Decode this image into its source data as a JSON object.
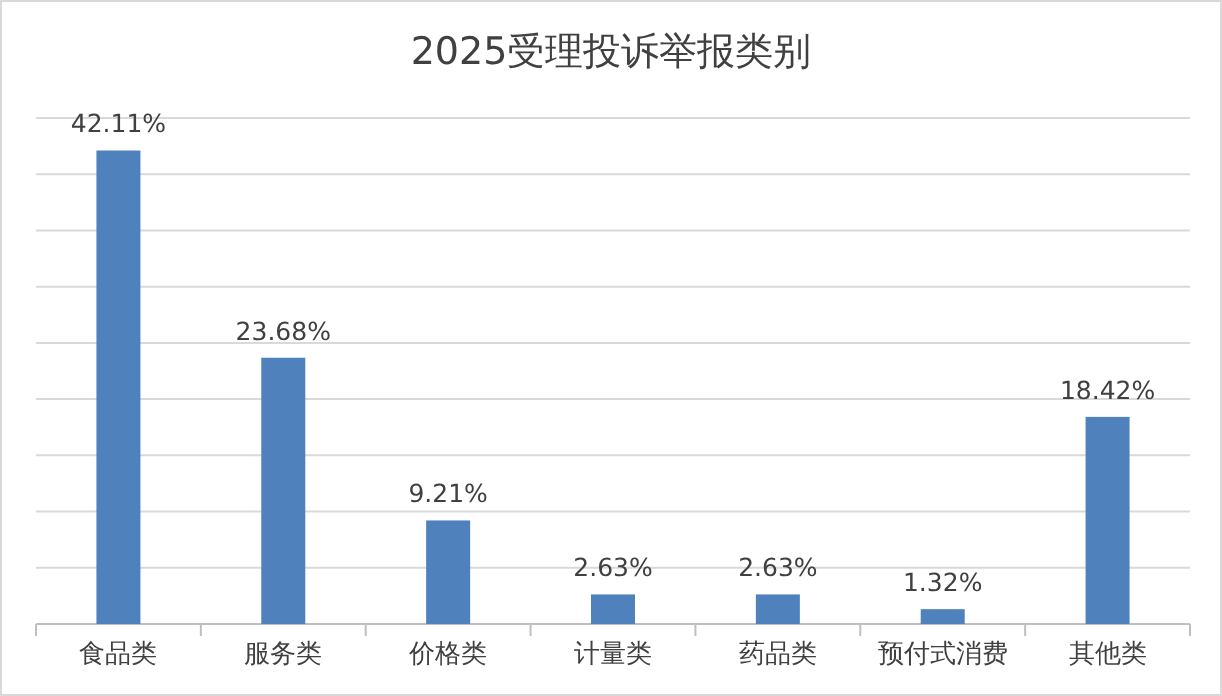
{
  "chart_data": {
    "type": "bar",
    "title": "2025受理投诉举报类别",
    "categories": [
      "食品类",
      "服务类",
      "价格类",
      "计量类",
      "药品类",
      "预付式消费",
      "其他类"
    ],
    "values": [
      42.11,
      23.68,
      9.21,
      2.63,
      2.63,
      1.32,
      18.42
    ],
    "value_labels": [
      "42.11%",
      "23.68%",
      "9.21%",
      "2.63%",
      "2.63%",
      "1.32%",
      "18.42%"
    ],
    "color": "#4f81bd",
    "ylim": [
      0,
      45
    ],
    "yticks": [
      {
        "value": 0,
        "label": null
      },
      {
        "value": 5,
        "label": null
      },
      {
        "value": 10,
        "label": null
      },
      {
        "value": 15,
        "label": null
      },
      {
        "value": 20,
        "label": null
      },
      {
        "value": 25,
        "label": null
      },
      {
        "value": 30,
        "label": null
      },
      {
        "value": 35,
        "label": null
      },
      {
        "value": 40,
        "label": null
      },
      {
        "value": 45,
        "label": null
      }
    ],
    "grid": "y"
  }
}
